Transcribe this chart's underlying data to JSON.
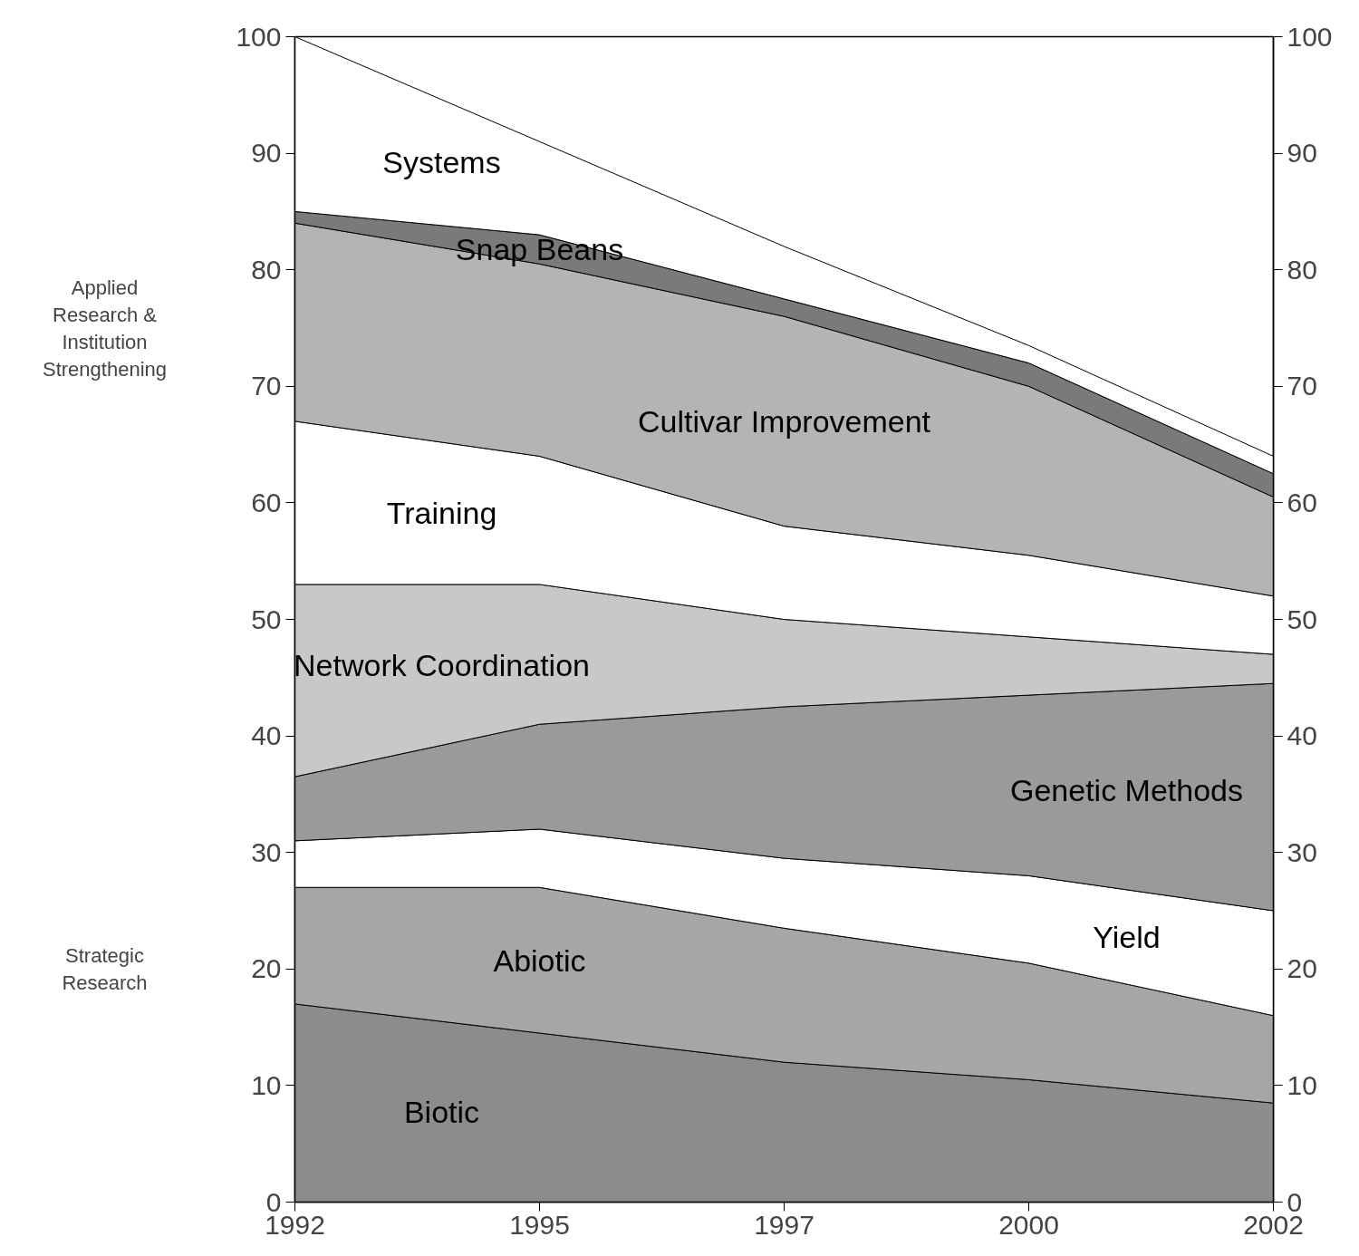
{
  "chart_data": {
    "type": "area",
    "stacked": true,
    "categories": [
      "1992",
      "1995",
      "1997",
      "2000",
      "2002"
    ],
    "series": [
      {
        "name": "Biotic",
        "color": "#8c8c8c",
        "values": [
          17,
          14.5,
          12,
          10.5,
          8.5
        ]
      },
      {
        "name": "Abiotic",
        "color": "#a6a6a6",
        "values": [
          10,
          12.5,
          11.5,
          10,
          7.5
        ]
      },
      {
        "name": "Yield",
        "color": "#ffffff",
        "values": [
          4,
          5,
          6,
          7.5,
          9
        ]
      },
      {
        "name": "Genetic Methods",
        "color": "#9a9a9a",
        "values": [
          5.5,
          9,
          13,
          15.5,
          19.5
        ]
      },
      {
        "name": "Network Coordination",
        "color": "#c8c8c8",
        "values": [
          16.5,
          12,
          7.5,
          5,
          2.5
        ]
      },
      {
        "name": "Training",
        "color": "#ffffff",
        "values": [
          14,
          11,
          8,
          7,
          5
        ]
      },
      {
        "name": "Cultivar Improvement",
        "color": "#b4b4b4",
        "values": [
          17,
          16.5,
          18,
          14.5,
          8.5
        ]
      },
      {
        "name": "Snap Beans",
        "color": "#7a7a7a",
        "values": [
          1,
          2.5,
          1.5,
          2,
          2
        ]
      },
      {
        "name": "Systems",
        "color": "#ffffff",
        "values": [
          15,
          8,
          4.5,
          1.5,
          1.5
        ]
      }
    ],
    "ylim": [
      0,
      100
    ],
    "yticks": [
      0,
      10,
      20,
      30,
      40,
      50,
      60,
      70,
      80,
      90,
      100
    ],
    "y2lim": [
      0,
      100
    ],
    "y2ticks": [
      0,
      10,
      20,
      30,
      40,
      50,
      60,
      70,
      80,
      90,
      100
    ],
    "annotations": [
      "Applied Research & Institution Strengthening",
      "Strategic Research"
    ]
  }
}
